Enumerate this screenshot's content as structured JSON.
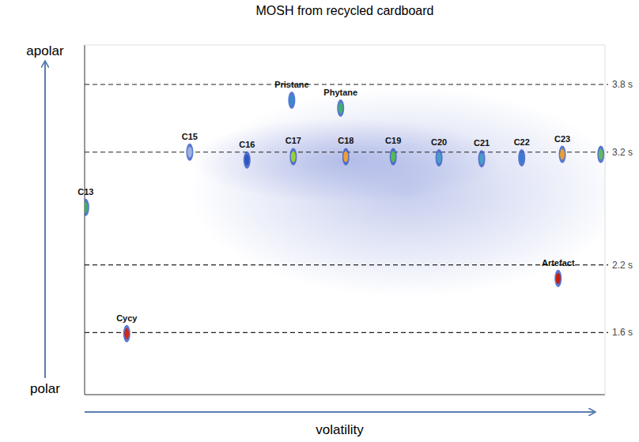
{
  "chart_data": {
    "type": "scatter",
    "title": "MOSH from recycled cardboard",
    "x_label": "volatility",
    "y_labels": {
      "top": "apolar",
      "bottom": "polar"
    },
    "x": [
      0.2,
      20.2,
      31.2,
      40.1,
      50.2,
      59.3,
      68.1,
      76.3,
      84.0,
      91.8,
      99.2,
      39.8,
      49.2,
      8.1,
      91.0
    ],
    "values": [
      2.71,
      3.2,
      3.13,
      3.16,
      3.16,
      3.16,
      3.15,
      3.14,
      3.15,
      3.18,
      3.18,
      3.66,
      3.59,
      1.59,
      2.08
    ],
    "labels": [
      "C13",
      "C15",
      "C16",
      "C17",
      "C18",
      "C19",
      "C20",
      "C21",
      "C22",
      "C23",
      null,
      "Pristane",
      "Phytane",
      "Cycy",
      "Artefact"
    ],
    "colors": [
      "#3fae6a",
      "#9fb1e0",
      "#2f56c0",
      "#9bcf3a",
      "#f0a030",
      "#58b858",
      "#4a9cc8",
      "#4a9cc8",
      "#3a7ad0",
      "#e8a030",
      "#5fb868",
      "#3a8ad0",
      "#40b070",
      "#d02818",
      "#c81e10"
    ],
    "xlim": [
      0,
      100
    ],
    "ylim": [
      1.05,
      4.15
    ],
    "yticks": [
      {
        "value": 1.6,
        "label": "1.6 s"
      },
      {
        "value": 2.2,
        "label": "2.2 s"
      },
      {
        "value": 3.2,
        "label": "3.2 s"
      },
      {
        "value": 3.8,
        "label": "3.8 s"
      }
    ],
    "grid": true,
    "tick_labels": "y",
    "marker": "ellipse"
  }
}
